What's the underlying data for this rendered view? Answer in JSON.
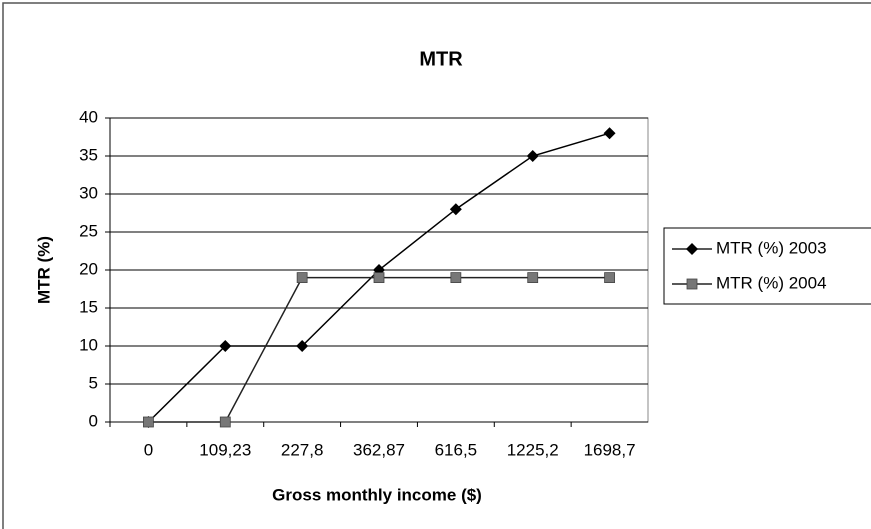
{
  "chart_data": {
    "type": "line",
    "title": "MTR",
    "x_label": "Gross monthly income ($)",
    "y_label": "MTR (%)",
    "categories": [
      "0",
      "109,23",
      "227,8",
      "362,87",
      "616,5",
      "1225,2",
      "1698,7"
    ],
    "series": [
      {
        "name": "MTR (%) 2003",
        "color": "#000000",
        "marker": "diamond",
        "values": [
          0,
          10,
          10,
          20,
          28,
          35,
          38
        ]
      },
      {
        "name": "MTR (%) 2004",
        "color": "#777777",
        "marker": "square",
        "values": [
          0,
          0,
          19,
          19,
          19,
          19,
          19
        ]
      }
    ],
    "ylim": [
      0,
      40
    ],
    "yticks": [
      0,
      5,
      10,
      15,
      20,
      25,
      30,
      35,
      40
    ],
    "grid": true,
    "legend": "right"
  }
}
